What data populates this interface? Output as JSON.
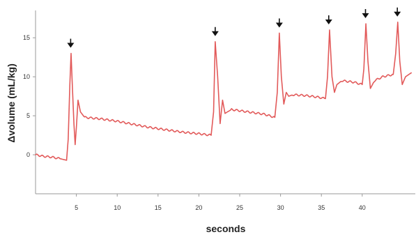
{
  "chart_data": {
    "type": "line",
    "xlabel": "seconds",
    "ylabel": "Δvolume (mL/kg)",
    "xlim": [
      0,
      46.5
    ],
    "ylim": [
      -5,
      18.5
    ],
    "x_ticks": [
      5,
      10,
      15,
      20,
      25,
      30,
      35,
      40
    ],
    "y_ticks": [
      0,
      5,
      10,
      15
    ],
    "grid": false,
    "line_color": "#e25a5a",
    "series": [
      {
        "x": [
          0,
          1,
          2,
          3,
          3.8,
          4.0,
          4.2,
          4.35,
          4.5,
          4.7,
          4.85,
          5.0,
          5.2,
          5.5,
          6,
          8,
          10,
          12,
          14,
          16,
          18,
          20,
          21.5,
          21.8,
          22.0,
          22.3,
          22.6,
          22.9,
          23.2,
          23.5,
          24,
          26,
          28,
          29.3,
          29.6,
          29.85,
          30.1,
          30.4,
          30.7,
          31,
          31.5,
          33,
          34.5,
          35.5,
          35.75,
          36.0,
          36.3,
          36.6,
          36.9,
          37.5,
          39,
          40.0,
          40.2,
          40.45,
          40.7,
          41,
          41.5,
          42.5,
          43.8,
          44.1,
          44.35,
          44.6,
          44.9,
          45.3,
          46
        ],
        "y": [
          0,
          -0.2,
          -0.3,
          -0.5,
          -0.7,
          2,
          9,
          13,
          9,
          4,
          1.3,
          3.5,
          7,
          5.5,
          4.8,
          4.6,
          4.3,
          3.9,
          3.5,
          3.2,
          2.9,
          2.7,
          2.5,
          5.5,
          14.5,
          10,
          4,
          7,
          5.3,
          5.5,
          5.8,
          5.5,
          5.2,
          4.8,
          8,
          15.6,
          10,
          6.5,
          8,
          7.5,
          7.7,
          7.6,
          7.4,
          7.2,
          10,
          16,
          10,
          8,
          9,
          9.5,
          9.3,
          9,
          11,
          16.8,
          12,
          8.5,
          9.5,
          10,
          10.3,
          13,
          17,
          12,
          9,
          10,
          10.5
        ]
      }
    ],
    "annotations": {
      "markers": [
        4.3,
        22.0,
        29.85,
        35.9,
        40.4,
        44.3
      ]
    }
  }
}
